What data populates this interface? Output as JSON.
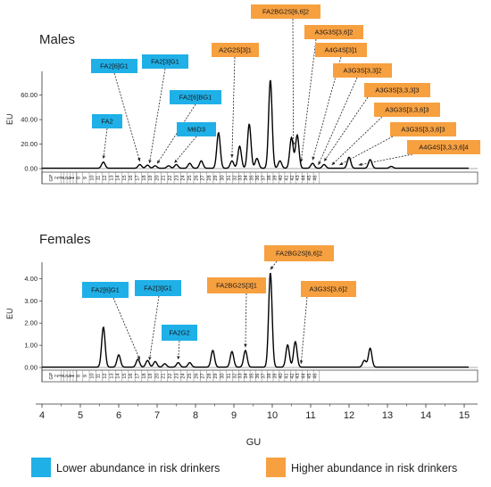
{
  "colors": {
    "lower": "#1fb0e8",
    "higher": "#f7a040",
    "trace": "#000000"
  },
  "legend": {
    "lower": "Lower abundance in risk drinkers",
    "higher": "Higher abundance in risk drinkers"
  },
  "chart_data": [
    {
      "type": "line",
      "title": "Males",
      "ylabel": "EU",
      "xlabel": "",
      "ylim": [
        0,
        75
      ],
      "yticks": [
        "0.00",
        "20.00",
        "40.00",
        "60.00"
      ],
      "gp_label": "GP",
      "gp_numbers": [
        "1",
        "2",
        "3",
        "4",
        "5",
        "6",
        "7",
        "8",
        "9",
        "10",
        "11",
        "12",
        "13",
        "14",
        "15",
        "16",
        "17",
        "18",
        "19",
        "20",
        "21",
        "22",
        "23",
        "24",
        "25",
        "26",
        "27",
        "28",
        "29",
        "30",
        "31",
        "32",
        "33",
        "34",
        "35",
        "36",
        "37",
        "38",
        "39",
        "40",
        "41",
        "42",
        "43",
        "44",
        "45",
        "46"
      ],
      "peaks": [
        {
          "gu": 5.6,
          "h": 5
        },
        {
          "gu": 6.55,
          "h": 3
        },
        {
          "gu": 6.75,
          "h": 2.5
        },
        {
          "gu": 6.95,
          "h": 2
        },
        {
          "gu": 7.3,
          "h": 2
        },
        {
          "gu": 7.5,
          "h": 3
        },
        {
          "gu": 7.85,
          "h": 4
        },
        {
          "gu": 8.15,
          "h": 6
        },
        {
          "gu": 8.6,
          "h": 29
        },
        {
          "gu": 8.95,
          "h": 6
        },
        {
          "gu": 9.15,
          "h": 18
        },
        {
          "gu": 9.4,
          "h": 36
        },
        {
          "gu": 9.6,
          "h": 8
        },
        {
          "gu": 9.95,
          "h": 72
        },
        {
          "gu": 10.2,
          "h": 6
        },
        {
          "gu": 10.5,
          "h": 25
        },
        {
          "gu": 10.65,
          "h": 27
        },
        {
          "gu": 11.05,
          "h": 4
        },
        {
          "gu": 11.35,
          "h": 3
        },
        {
          "gu": 12.0,
          "h": 9
        },
        {
          "gu": 12.55,
          "h": 7
        },
        {
          "gu": 13.1,
          "h": 1.5
        }
      ],
      "annotations": [
        {
          "label": "FA2",
          "group": "lower"
        },
        {
          "label": "FA2[6]G1",
          "group": "lower"
        },
        {
          "label": "FA2[3]G1",
          "group": "lower"
        },
        {
          "label": "FA2[6]BG1",
          "group": "lower"
        },
        {
          "label": "M6D3",
          "group": "lower"
        },
        {
          "label": "A2G2S[3]1",
          "group": "higher"
        },
        {
          "label": "FA2BG2S[6,6]2",
          "group": "higher"
        },
        {
          "label": "A3G3S[3,6]2",
          "group": "higher"
        },
        {
          "label": "A4G4S[3]1",
          "group": "higher"
        },
        {
          "label": "A3G3S[3,3]2",
          "group": "higher"
        },
        {
          "label": "A3G3S[3,3,3]3",
          "group": "higher"
        },
        {
          "label": "A3G3S[3,3,6]3",
          "group": "higher"
        },
        {
          "label": "A3G3S[3,3,6]3",
          "group": "higher"
        },
        {
          "label": "A4G4S[3,3,3,6]4",
          "group": "higher"
        }
      ]
    },
    {
      "type": "line",
      "title": "Females",
      "ylabel": "EU",
      "xlabel": "GU",
      "ylim": [
        0,
        4.5
      ],
      "yticks": [
        "0.00",
        "1.00",
        "2.00",
        "3.00",
        "4.00"
      ],
      "xlim": [
        4,
        15.3
      ],
      "xticks": [
        "4",
        "5",
        "6",
        "7",
        "8",
        "9",
        "10",
        "11",
        "12",
        "13",
        "14",
        "15"
      ],
      "gp_label": "GP",
      "gp_numbers": [
        "1",
        "2",
        "3",
        "4",
        "5",
        "6",
        "7",
        "8",
        "9",
        "10",
        "11",
        "12",
        "13",
        "14",
        "15",
        "16",
        "17",
        "18",
        "19",
        "20",
        "21",
        "22",
        "23",
        "24",
        "25",
        "26",
        "27",
        "28",
        "29",
        "30",
        "31",
        "32",
        "33",
        "34",
        "35",
        "36",
        "37",
        "38",
        "39",
        "40",
        "41",
        "42",
        "43",
        "44",
        "45",
        "46"
      ],
      "peaks": [
        {
          "gu": 5.6,
          "h": 1.8
        },
        {
          "gu": 6.0,
          "h": 0.55
        },
        {
          "gu": 6.5,
          "h": 0.35
        },
        {
          "gu": 6.75,
          "h": 0.3
        },
        {
          "gu": 6.95,
          "h": 0.25
        },
        {
          "gu": 7.2,
          "h": 0.15
        },
        {
          "gu": 7.55,
          "h": 0.2
        },
        {
          "gu": 7.85,
          "h": 0.2
        },
        {
          "gu": 8.45,
          "h": 0.75
        },
        {
          "gu": 8.95,
          "h": 0.7
        },
        {
          "gu": 9.3,
          "h": 0.75
        },
        {
          "gu": 9.95,
          "h": 4.25
        },
        {
          "gu": 10.4,
          "h": 1.0
        },
        {
          "gu": 10.6,
          "h": 1.15
        },
        {
          "gu": 12.55,
          "h": 0.85
        },
        {
          "gu": 12.4,
          "h": 0.3
        }
      ],
      "annotations": [
        {
          "label": "FA2[6]G1",
          "group": "lower"
        },
        {
          "label": "FA2[3]G1",
          "group": "lower"
        },
        {
          "label": "FA2G2",
          "group": "lower"
        },
        {
          "label": "FA2BG2S[3]1",
          "group": "higher"
        },
        {
          "label": "FA2BG2S[6,6]2",
          "group": "higher"
        },
        {
          "label": "A3G3S[3,6]2",
          "group": "higher"
        }
      ]
    }
  ]
}
